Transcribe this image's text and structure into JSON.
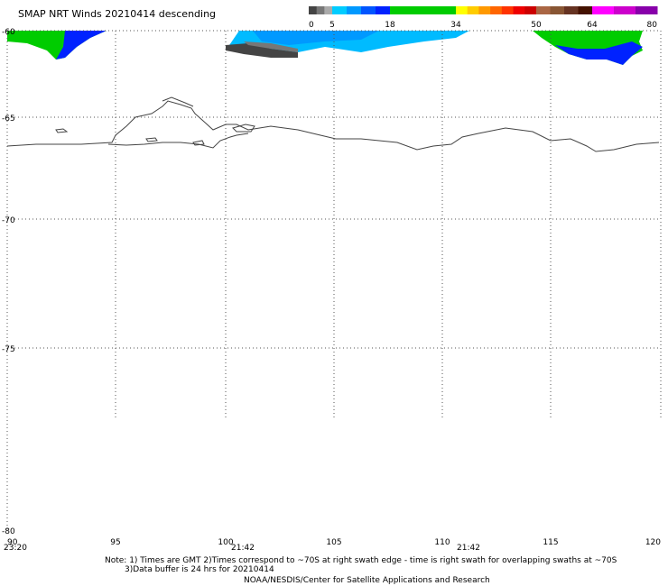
{
  "title": "SMAP NRT Winds  20210414 descending",
  "colorbar": {
    "labels": [
      "0",
      "5",
      "18",
      "34",
      "50",
      "64",
      "80"
    ],
    "segments": [
      {
        "from": 0,
        "to": 5,
        "colors": [
          "#444444",
          "#777777",
          "#aaaaaa"
        ]
      },
      {
        "from": 5,
        "to": 18,
        "colors": [
          "#00ccff",
          "#0099ff",
          "#0055ff",
          "#0022ff"
        ]
      },
      {
        "from": 18,
        "to": 34,
        "colors": [
          "#00cc00"
        ]
      },
      {
        "from": 34,
        "to": 50,
        "colors": [
          "#ffff00",
          "#ffcc00",
          "#ff9900",
          "#ff6600",
          "#ff3300",
          "#ee0000",
          "#cc0000"
        ]
      },
      {
        "from": 50,
        "to": 64,
        "colors": [
          "#aa6644",
          "#885533",
          "#663322",
          "#441100"
        ]
      },
      {
        "from": 64,
        "to": 80,
        "colors": [
          "#ff00ff",
          "#cc00cc",
          "#8800aa"
        ]
      }
    ]
  },
  "map": {
    "lon_range": [
      90,
      120
    ],
    "lat_range": [
      -60,
      -80
    ],
    "lat_labels": [
      "-60",
      "-65",
      "-70",
      "-75",
      "-80"
    ],
    "lon_labels": [
      "90",
      "95",
      "100",
      "105",
      "110",
      "115",
      "120"
    ],
    "time_labels": [
      "23:20",
      "21:42",
      "21:42"
    ]
  },
  "notes": {
    "line1": "Note: 1) Times are GMT 2)Times correspond to ~70S at right swath edge - time is right swath for overlapping swaths at ~70S",
    "line2": "3)Data buffer is 24 hrs for 20210414",
    "credit": "NOAA/NESDIS/Center for Satellite Applications and Research"
  }
}
